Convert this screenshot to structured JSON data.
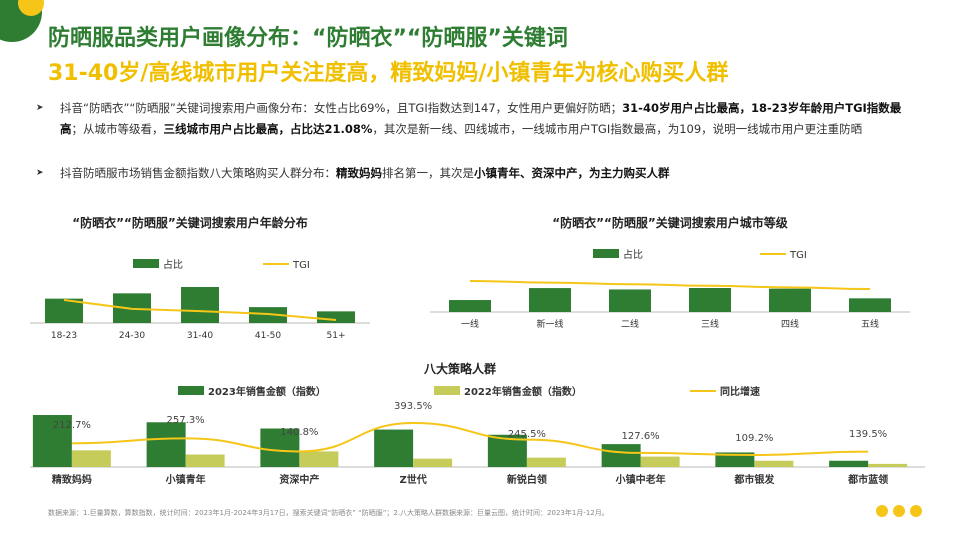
{
  "title": "防晒服品类用户画像分布：“防晒衣”“防晒服”关键词",
  "subtitle": "31-40岁/高线城市用户关注度高，精致妈妈/小镇青年为核心购买人群",
  "bullets": [
    {
      "parts": [
        [
          "抖音“防晒衣”“防晒服”关键词搜索用户画像分布：女性占比69%，且TGI指数达到147，女性用户更偏好防晒；",
          false
        ],
        [
          "31-40岁用户占比最高，18-23岁年龄用户TGI指数最高",
          true
        ],
        [
          "；从城市等级看，",
          false
        ],
        [
          "三线城市用户占比最高，占比达21.08%",
          true
        ],
        [
          "，其次是新一线、四线城市，一线城市用户TGI指数最高，为109，说明一线城市用户更注重防晒",
          false
        ]
      ]
    },
    {
      "parts": [
        [
          "抖音防晒服市场销售金额指数八大策略购买人群分布：",
          false
        ],
        [
          "精致妈妈",
          true
        ],
        [
          "排名第一，其次是",
          false
        ],
        [
          "小镇青年、资深中产，为主力购买人群",
          true
        ]
      ]
    }
  ],
  "colors": {
    "green": "#2e7d32",
    "light": "#c5cc5a",
    "line": "#f5c518"
  },
  "chart_data": [
    {
      "type": "bar",
      "title": "“防晒衣”“防晒服”关键词搜索用户年龄分布",
      "categories": [
        "18-23",
        "24-30",
        "31-40",
        "41-50",
        "51+"
      ],
      "series": [
        {
          "name": "占比",
          "type": "bar",
          "values": [
            23,
            28,
            34,
            15,
            11
          ]
        },
        {
          "name": "TGI",
          "type": "line",
          "values": [
            147,
            128,
            123,
            117,
            104
          ]
        }
      ]
    },
    {
      "type": "bar",
      "title": "“防晒衣”“防晒服”关键词搜索用户城市等级",
      "categories": [
        "一线",
        "新一线",
        "二线",
        "三线",
        "四线",
        "五线"
      ],
      "series": [
        {
          "name": "占比",
          "type": "bar",
          "values": [
            10.5,
            21.0,
            19.8,
            21.08,
            20.5,
            12.0
          ]
        },
        {
          "name": "TGI",
          "type": "line",
          "values": [
            109,
            107,
            105,
            103,
            101,
            99
          ]
        }
      ]
    },
    {
      "type": "bar",
      "title": "八大策略人群",
      "categories": [
        "精致妈妈",
        "小镇青年",
        "资深中产",
        "Z世代",
        "新锐白领",
        "小镇中老年",
        "都市银发",
        "都市蓝领"
      ],
      "series": [
        {
          "name": "2023年销售金额（指数）",
          "type": "bar",
          "values": [
            50,
            43,
            37,
            36,
            31,
            22,
            14,
            6
          ]
        },
        {
          "name": "2022年销售金额（指数）",
          "type": "bar",
          "values": [
            16,
            12,
            15,
            8,
            9,
            10,
            6,
            3
          ]
        },
        {
          "name": "同比增速",
          "type": "line",
          "values": [
            212.7,
            257.3,
            140.8,
            393.5,
            245.5,
            127.6,
            109.2,
            139.5
          ],
          "labels": [
            "212.7%",
            "257.3%",
            "140.8%",
            "393.5%",
            "245.5%",
            "127.6%",
            "109.2%",
            "139.5%"
          ]
        }
      ]
    }
  ],
  "footnote": "数据来源：1.巨量算数，算数指数，统计时间：2023年1月-2024年3月17日，搜索关键词“防晒衣” “防晒服”；2.八大策略人群数据来源：巨量云图，统计时间：2023年1月-12月。"
}
